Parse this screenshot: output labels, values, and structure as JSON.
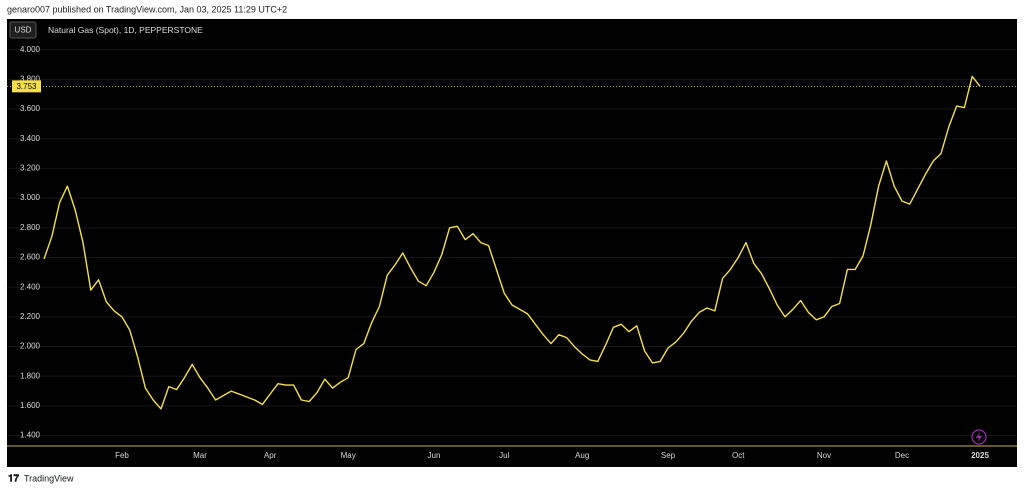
{
  "attribution": "genaro007 published on TradingView.com, Jan 03, 2025 11:29 UTC+2",
  "currency_button": "USD",
  "footer_brand": "TradingView",
  "chart_data": {
    "type": "line",
    "categories": [
      null,
      null,
      null,
      null,
      null,
      null,
      null,
      null,
      null,
      null,
      "Feb",
      null,
      null,
      null,
      null,
      null,
      null,
      null,
      null,
      null,
      "Mar",
      null,
      null,
      null,
      null,
      null,
      null,
      null,
      null,
      "Apr",
      null,
      null,
      null,
      null,
      null,
      null,
      null,
      null,
      null,
      "May",
      null,
      null,
      null,
      null,
      null,
      null,
      null,
      null,
      null,
      null,
      "Jun",
      null,
      null,
      null,
      null,
      null,
      null,
      null,
      null,
      "Jul",
      null,
      null,
      null,
      null,
      null,
      null,
      null,
      null,
      null,
      "Aug",
      null,
      null,
      null,
      null,
      null,
      null,
      null,
      null,
      null,
      null,
      "Sep",
      null,
      null,
      null,
      null,
      null,
      null,
      null,
      null,
      "Oct",
      null,
      null,
      null,
      null,
      null,
      null,
      null,
      null,
      null,
      null,
      "Nov",
      null,
      null,
      null,
      null,
      null,
      null,
      null,
      null,
      null,
      "Dec",
      null,
      null,
      null,
      null,
      null,
      null,
      null,
      null,
      null,
      "2025"
    ],
    "series": [
      {
        "name": "Natural Gas (Spot), 1D, PEPPERSTONE",
        "color": "#f5e04a",
        "values": [
          2.59,
          2.74,
          2.97,
          3.08,
          2.92,
          2.7,
          2.38,
          2.45,
          2.3,
          2.24,
          2.2,
          2.11,
          1.93,
          1.72,
          1.64,
          1.58,
          1.73,
          1.71,
          1.79,
          1.88,
          1.79,
          1.72,
          1.64,
          1.67,
          1.7,
          1.68,
          1.66,
          1.64,
          1.61,
          1.68,
          1.75,
          1.74,
          1.74,
          1.64,
          1.63,
          1.69,
          1.78,
          1.72,
          1.76,
          1.79,
          1.98,
          2.02,
          2.16,
          2.27,
          2.48,
          2.55,
          2.63,
          2.53,
          2.44,
          2.41,
          2.5,
          2.62,
          2.8,
          2.81,
          2.72,
          2.76,
          2.7,
          2.68,
          2.52,
          2.36,
          2.28,
          2.25,
          2.22,
          2.15,
          2.08,
          2.02,
          2.08,
          2.06,
          2.0,
          1.95,
          1.91,
          1.9,
          2.01,
          2.13,
          2.15,
          2.1,
          2.14,
          1.97,
          1.89,
          1.9,
          1.99,
          2.03,
          2.09,
          2.17,
          2.23,
          2.26,
          2.24,
          2.46,
          2.52,
          2.6,
          2.7,
          2.56,
          2.49,
          2.39,
          2.28,
          2.2,
          2.25,
          2.31,
          2.23,
          2.18,
          2.2,
          2.27,
          2.29,
          2.52,
          2.52,
          2.61,
          2.82,
          3.08,
          3.25,
          3.08,
          2.98,
          2.96,
          3.06,
          3.16,
          3.25,
          3.3,
          3.48,
          3.62,
          3.61,
          3.82,
          3.753
        ]
      }
    ],
    "ylim": [
      1.33,
      4.2
    ],
    "yticks": [
      {
        "value": 1.4,
        "label": "1.400"
      },
      {
        "value": 1.6,
        "label": "1.600"
      },
      {
        "value": 1.8,
        "label": "1.800"
      },
      {
        "value": 2.0,
        "label": "2.000"
      },
      {
        "value": 2.2,
        "label": "2.200"
      },
      {
        "value": 2.4,
        "label": "2.400"
      },
      {
        "value": 2.6,
        "label": "2.600"
      },
      {
        "value": 2.8,
        "label": "2.800"
      },
      {
        "value": 3.0,
        "label": "3.000"
      },
      {
        "value": 3.2,
        "label": "3.200"
      },
      {
        "value": 3.4,
        "label": "3.400"
      },
      {
        "value": 3.6,
        "label": "3.600"
      },
      {
        "value": 3.8,
        "label": "3.800"
      },
      {
        "value": 4.0,
        "label": "4.000"
      }
    ],
    "grid": true
  }
}
